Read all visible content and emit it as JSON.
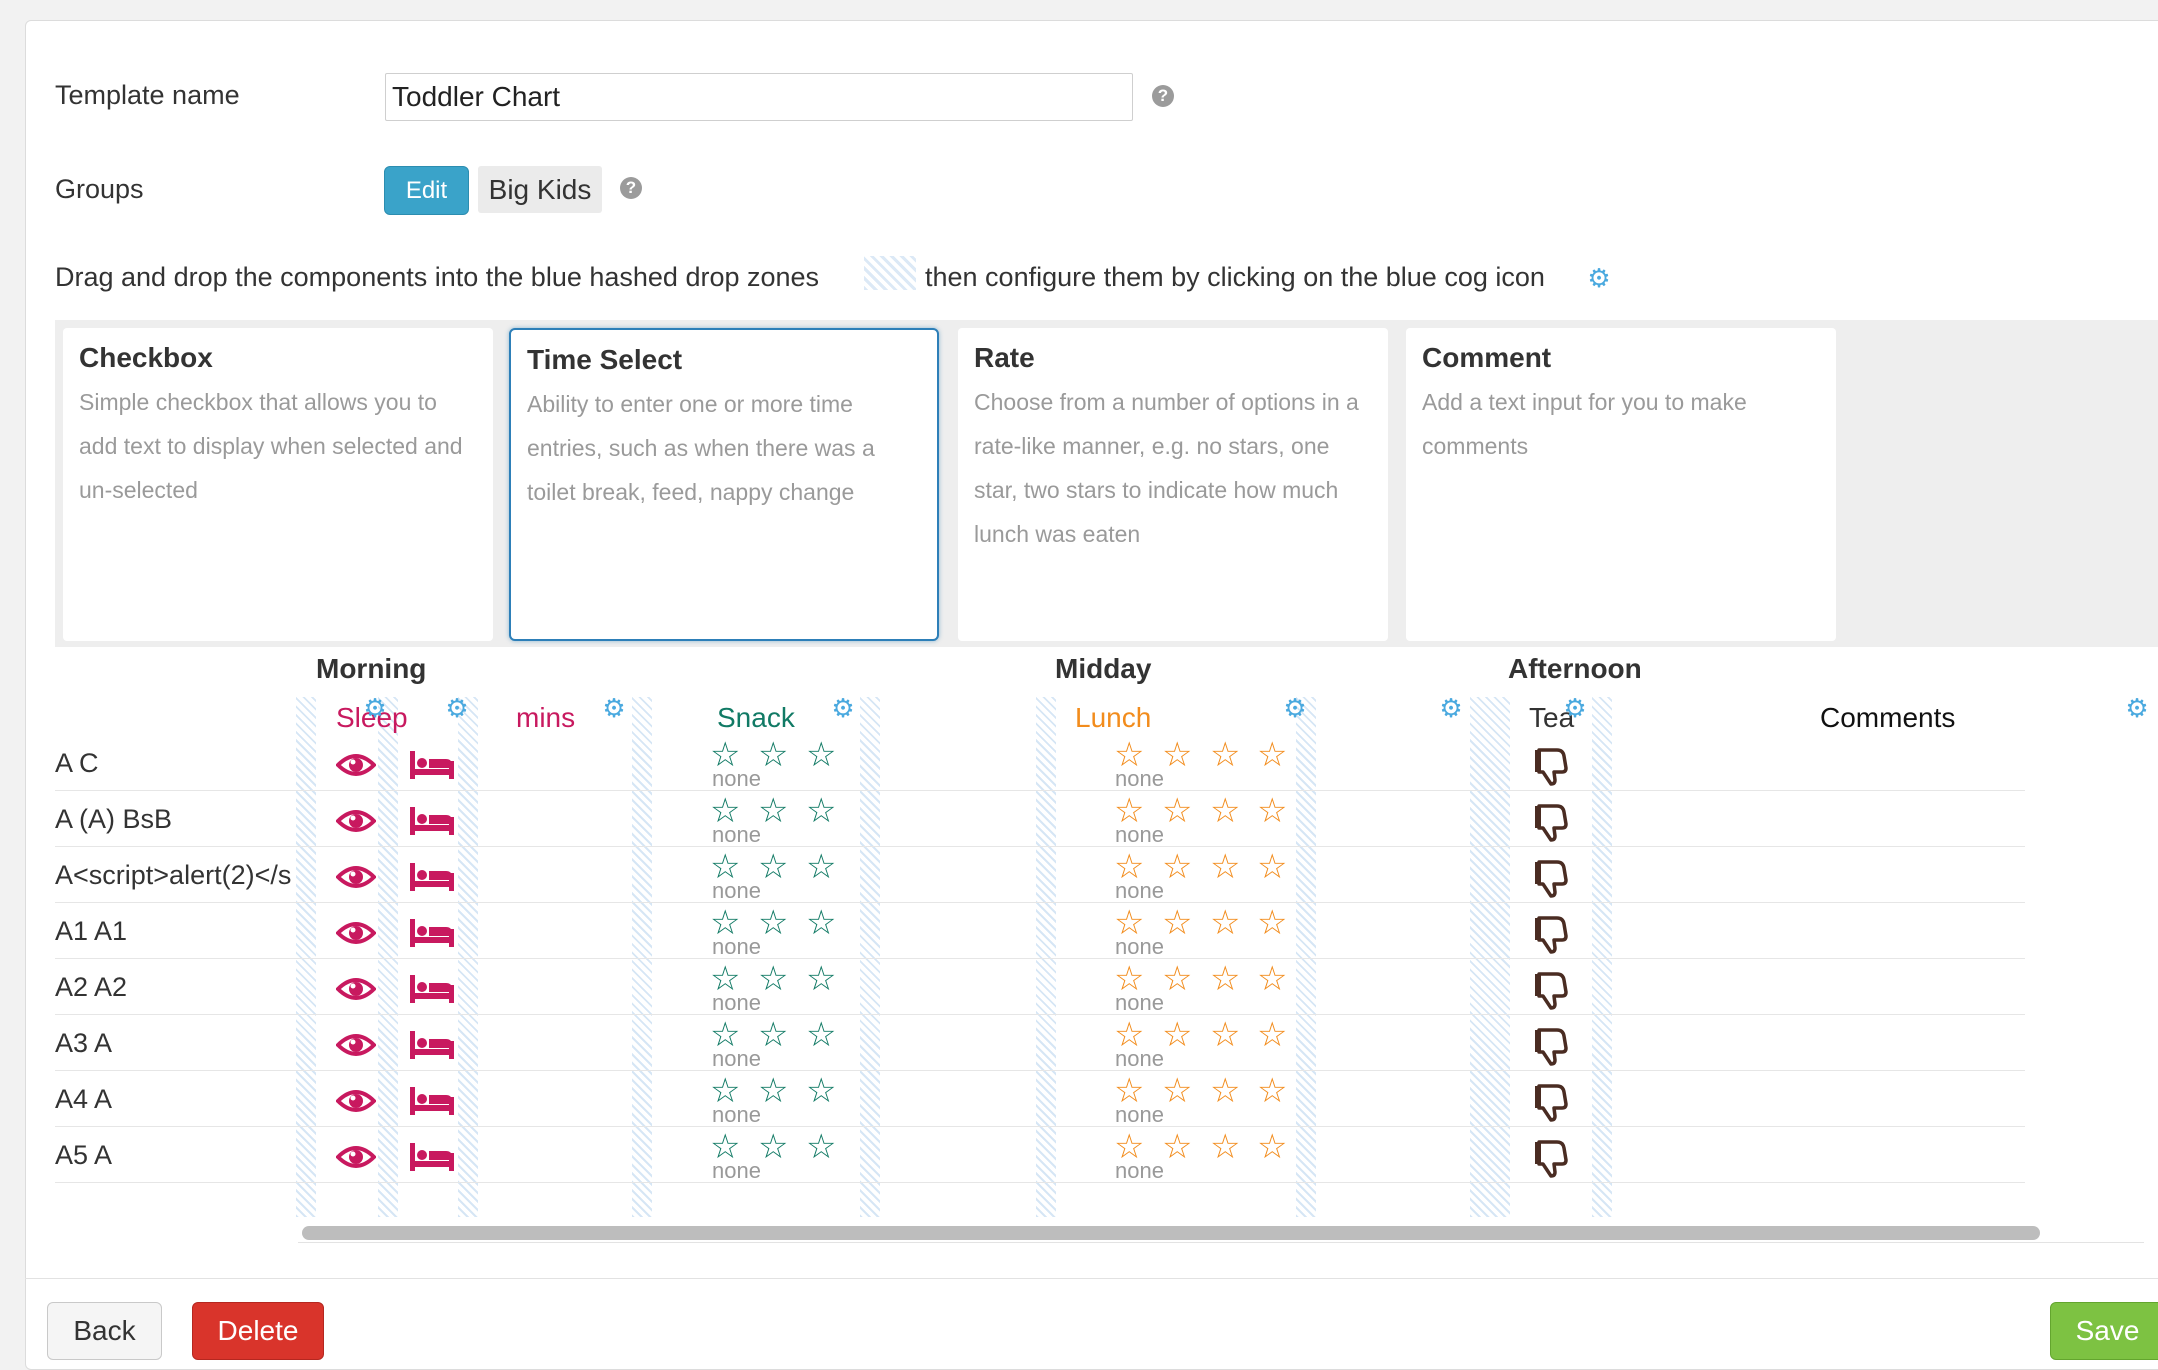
{
  "form": {
    "template_label": "Template name",
    "template_value": "Toddler Chart",
    "groups_label": "Groups",
    "edit_label": "Edit",
    "group_tag": "Big Kids",
    "help_glyph": "?"
  },
  "instructions": {
    "part1": "Drag and drop the components into the blue hashed drop zones",
    "part2": "then configure them by clicking on the blue cog icon"
  },
  "components": [
    {
      "title": "Checkbox",
      "desc": "Simple checkbox that allows you to add text to display when selected and un-selected"
    },
    {
      "title": "Time Select",
      "desc": "Ability to enter one or more time entries, such as when there was a toilet break, feed, nappy change"
    },
    {
      "title": "Rate",
      "desc": "Choose from a number of options in a rate-like manner, e.g. no stars, one star, two stars to indicate how much lunch was eaten"
    },
    {
      "title": "Comment",
      "desc": "Add a text input for you to make comments"
    }
  ],
  "sections": {
    "morning": "Morning",
    "midday": "Midday",
    "afternoon": "Afternoon"
  },
  "columns": {
    "sleep": "Sleep",
    "mins": "mins",
    "snack": "Snack",
    "lunch": "Lunch",
    "tea": "Tea",
    "comments": "Comments"
  },
  "rate_none_label": "none",
  "rows": [
    {
      "name": "A C"
    },
    {
      "name": "A (A) BsB"
    },
    {
      "name": "A<script>alert(2)</s"
    },
    {
      "name": "A1 A1"
    },
    {
      "name": "A2 A2"
    },
    {
      "name": "A3 A"
    },
    {
      "name": "A4 A"
    },
    {
      "name": "A5 A"
    }
  ],
  "footer": {
    "back": "Back",
    "delete": "Delete",
    "save": "Save"
  },
  "colors": {
    "accent_blue": "#3aa3c9",
    "sleep_pink": "#c8195f",
    "snack_green": "#117a65",
    "lunch_orange": "#f28c1c",
    "tea_brown": "#4a2c22",
    "delete_red": "#d9342b",
    "save_green": "#7dc242"
  },
  "icons": {
    "sleep_eye": "eye-icon",
    "sleep_bed": "bed-icon",
    "snack_star": "star-outline-icon",
    "lunch_star": "star-outline-icon",
    "tea_thumb": "thumbs-down-icon",
    "cog": "cog-icon"
  }
}
